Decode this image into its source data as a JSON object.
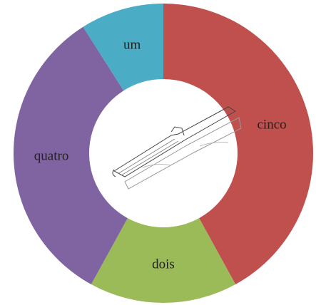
{
  "chart_data": {
    "type": "donut",
    "categories": [
      "cinco",
      "dois",
      "quatro",
      "um"
    ],
    "values": [
      42,
      16,
      33,
      9
    ],
    "colors": [
      "#c0504d",
      "#9bbb59",
      "#8064a2",
      "#4bacc6"
    ]
  }
}
